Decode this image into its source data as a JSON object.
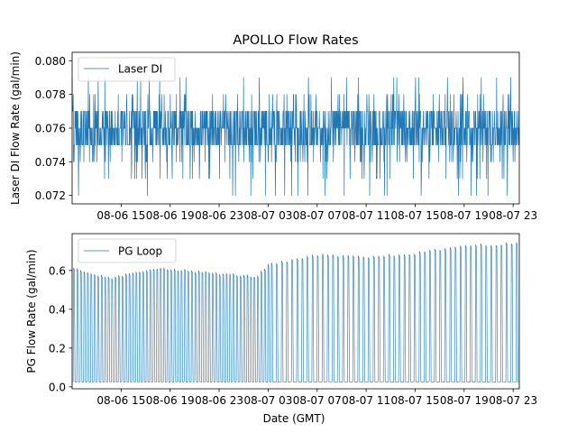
{
  "title": "APOLLO Flow Rates",
  "colors": {
    "line": "#1f77b4",
    "axis": "#000000",
    "legend_border": "#cccccc"
  },
  "chart_data": [
    {
      "type": "line",
      "xlabel": "",
      "ylabel": "Laser DI Flow Rate (gal/min)",
      "x_range": [
        "2024-08-06 11:00",
        "2024-08-07 23:30"
      ],
      "xticks": [
        "08-06 15",
        "08-06 19",
        "08-06 23",
        "08-07 03",
        "08-07 07",
        "08-07 11",
        "08-07 15",
        "08-07 19",
        "08-07 23"
      ],
      "ylim": [
        0.0715,
        0.0805
      ],
      "yticks": [
        "0.072",
        "0.074",
        "0.076",
        "0.078",
        "0.080"
      ],
      "legend": {
        "position": "upper-left",
        "entries": [
          "Laser DI"
        ]
      },
      "grid": false,
      "series": [
        {
          "name": "Laser DI",
          "description_of_values": "dense noisy signal oscillating between 0.075 and 0.077 with spikes",
          "baseline_values": [
            0.075,
            0.076,
            0.077
          ],
          "upper_spike_values": [
            0.078,
            0.079
          ],
          "lower_spike_values": [
            0.074,
            0.073,
            0.072
          ]
        }
      ]
    },
    {
      "type": "line",
      "xlabel": "Date (GMT)",
      "ylabel": "PG Flow Rate (gal/min)",
      "x_range": [
        "2024-08-06 11:00",
        "2024-08-07 23:30"
      ],
      "xticks": [
        "08-06 15",
        "08-06 19",
        "08-06 23",
        "08-07 03",
        "08-07 07",
        "08-07 11",
        "08-07 15",
        "08-07 19",
        "08-07 23"
      ],
      "ylim": [
        -0.01,
        0.79
      ],
      "yticks": [
        "0.0",
        "0.2",
        "0.4",
        "0.6"
      ],
      "legend": {
        "position": "upper-left",
        "entries": [
          "PG Loop"
        ]
      },
      "grid": false,
      "series": [
        {
          "name": "PG Loop",
          "baseline": 0.025,
          "pulse_peak_profile": [
            {
              "time": "2024-08-06 11:00",
              "peak": 0.61
            },
            {
              "time": "2024-08-06 14:00",
              "peak": 0.56
            },
            {
              "time": "2024-08-06 18:00",
              "peak": 0.615
            },
            {
              "time": "2024-08-06 22:00",
              "peak": 0.59
            },
            {
              "time": "2024-08-07 02:00",
              "peak": 0.57
            },
            {
              "time": "2024-08-07 03:00",
              "peak": 0.63
            },
            {
              "time": "2024-08-07 07:00",
              "peak": 0.68
            },
            {
              "time": "2024-08-07 11:00",
              "peak": 0.67
            },
            {
              "time": "2024-08-07 15:00",
              "peak": 0.69
            },
            {
              "time": "2024-08-07 19:00",
              "peak": 0.73
            },
            {
              "time": "2024-08-07 23:30",
              "peak": 0.74
            }
          ]
        }
      ]
    }
  ]
}
